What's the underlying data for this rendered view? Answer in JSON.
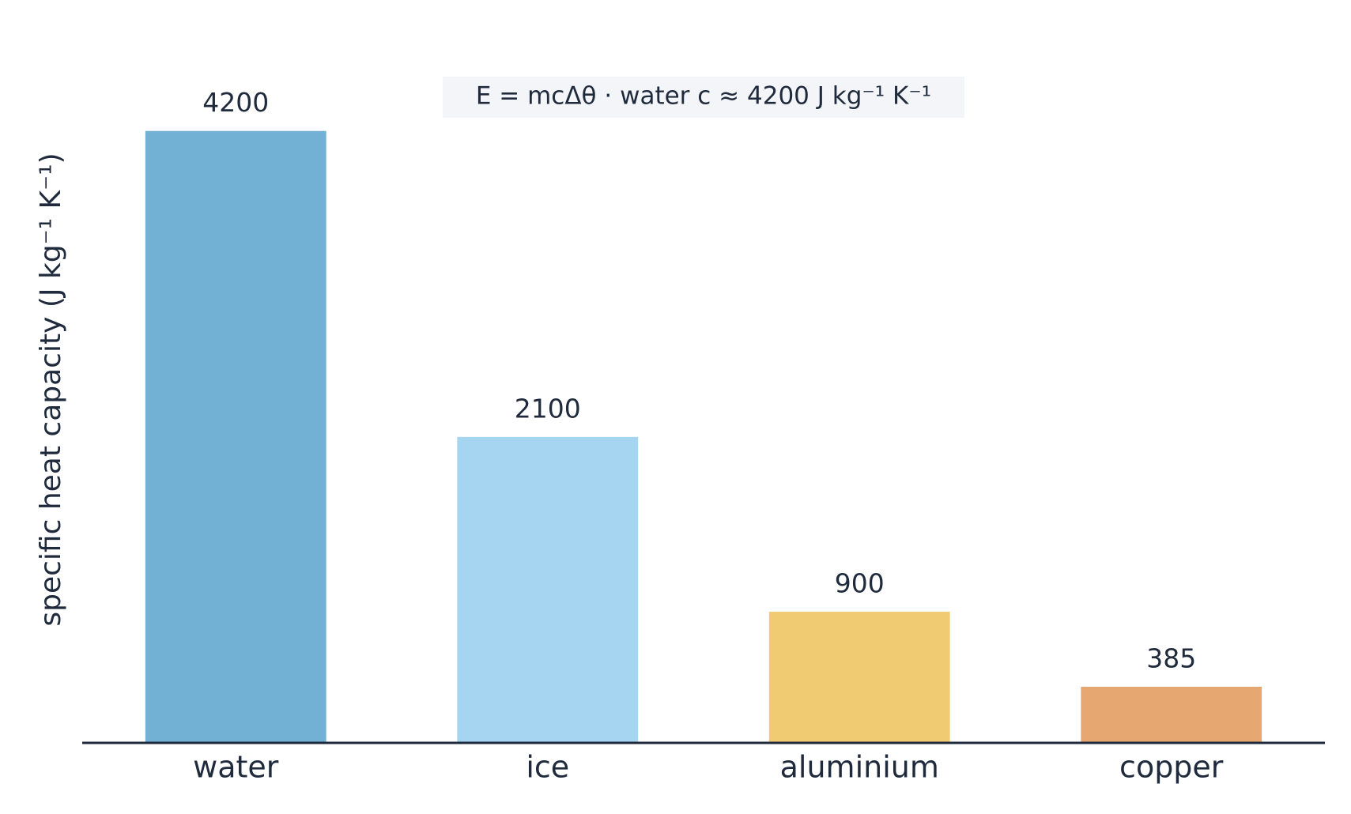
{
  "chart_data": {
    "type": "bar",
    "annotation": "E = mcΔθ  ·  water c ≈ 4200 J kg⁻¹ K⁻¹",
    "y_label": "specific heat capacity  (J kg⁻¹ K⁻¹)",
    "categories": [
      "water",
      "ice",
      "aluminium",
      "copper"
    ],
    "values": [
      4200,
      2100,
      900,
      385
    ],
    "colors": [
      "#72b0d4",
      "#a5d5f1",
      "#f0cb72",
      "#e6a770"
    ],
    "ylim": [
      0,
      4410
    ]
  }
}
